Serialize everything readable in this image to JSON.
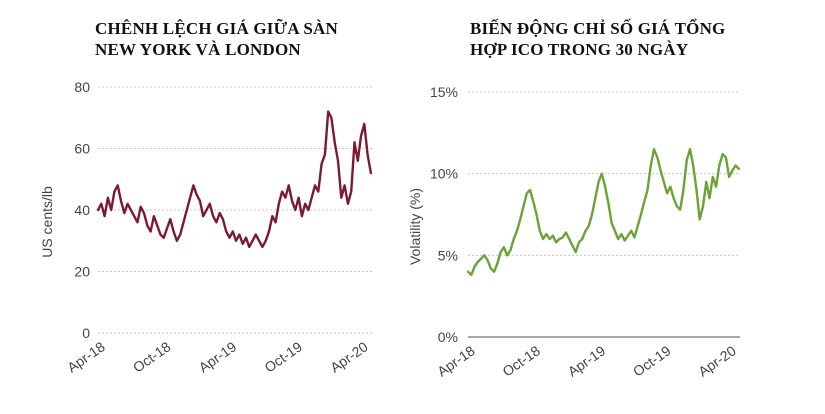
{
  "chart_data": [
    {
      "type": "line",
      "title_lines": [
        "CHÊNH LỆCH GIÁ GIỮA SÀN",
        "NEW YORK VÀ LONDON"
      ],
      "ylabel": "US cents/lb",
      "xlabel": "",
      "ylim": [
        0,
        80
      ],
      "yticks": [
        {
          "value": 0,
          "label": "0"
        },
        {
          "value": 20,
          "label": "20"
        },
        {
          "value": 40,
          "label": "40"
        },
        {
          "value": 60,
          "label": "60"
        },
        {
          "value": 80,
          "label": "80"
        }
      ],
      "xlim": [
        0,
        25
      ],
      "xticks": [
        {
          "value": 0,
          "label": "Apr-18"
        },
        {
          "value": 6,
          "label": "Oct-18"
        },
        {
          "value": 12,
          "label": "Apr-19"
        },
        {
          "value": 18,
          "label": "Oct-19"
        },
        {
          "value": 24,
          "label": "Apr-20"
        }
      ],
      "grid": true,
      "color": "#7b1a30",
      "series": [
        {
          "x": [
            0,
            0.3,
            0.6,
            0.9,
            1.2,
            1.5,
            1.8,
            2.1,
            2.4,
            2.7,
            3.0,
            3.3,
            3.6,
            3.9,
            4.2,
            4.5,
            4.8,
            5.1,
            5.4,
            5.7,
            6.0,
            6.3,
            6.6,
            6.9,
            7.2,
            7.5,
            7.8,
            8.1,
            8.4,
            8.7,
            9.0,
            9.3,
            9.6,
            9.9,
            10.2,
            10.5,
            10.8,
            11.1,
            11.4,
            11.7,
            12.0,
            12.3,
            12.6,
            12.9,
            13.2,
            13.5,
            13.8,
            14.1,
            14.4,
            14.7,
            15.0,
            15.3,
            15.6,
            15.9,
            16.2,
            16.5,
            16.8,
            17.1,
            17.4,
            17.7,
            18.0,
            18.3,
            18.6,
            18.9,
            19.2,
            19.5,
            19.8,
            20.1,
            20.4,
            20.7,
            21.0,
            21.3,
            21.6,
            21.9,
            22.2,
            22.5,
            22.8,
            23.1,
            23.4,
            23.7,
            24.0,
            24.3,
            24.6,
            24.9
          ],
          "y": [
            40,
            42,
            38,
            44,
            40,
            46,
            48,
            43,
            39,
            42,
            40,
            38,
            36,
            41,
            39,
            35,
            33,
            38,
            35,
            32,
            31,
            34,
            37,
            33,
            30,
            32,
            36,
            40,
            44,
            48,
            45,
            43,
            38,
            40,
            42,
            38,
            36,
            39,
            37,
            33,
            31,
            33,
            30,
            32,
            29,
            31,
            28,
            30,
            32,
            30,
            28,
            30,
            33,
            38,
            36,
            42,
            46,
            44,
            48,
            43,
            40,
            44,
            38,
            42,
            40,
            44,
            48,
            46,
            55,
            58,
            72,
            70,
            62,
            56,
            44,
            48,
            42,
            46,
            62,
            56,
            64,
            68,
            58,
            52
          ]
        }
      ]
    },
    {
      "type": "line",
      "title_lines": [
        "BIẾN ĐỘNG CHỈ SỐ GIÁ TỔNG",
        "HỢP ICO TRONG 30 NGÀY"
      ],
      "ylabel": "Volatility (%)",
      "xlabel": "",
      "ylim": [
        0,
        15
      ],
      "yticks": [
        {
          "value": 0,
          "label": "0%"
        },
        {
          "value": 5,
          "label": "5%"
        },
        {
          "value": 10,
          "label": "10%"
        },
        {
          "value": 15,
          "label": "15%"
        }
      ],
      "xlim": [
        0,
        25
      ],
      "xticks": [
        {
          "value": 0,
          "label": "Apr-18"
        },
        {
          "value": 6,
          "label": "Oct-18"
        },
        {
          "value": 12,
          "label": "Apr-19"
        },
        {
          "value": 18,
          "label": "Oct-19"
        },
        {
          "value": 24,
          "label": "Apr-20"
        }
      ],
      "grid": true,
      "color": "#6aa339",
      "series": [
        {
          "x": [
            0,
            0.3,
            0.6,
            0.9,
            1.2,
            1.5,
            1.8,
            2.1,
            2.4,
            2.7,
            3.0,
            3.3,
            3.6,
            3.9,
            4.2,
            4.5,
            4.8,
            5.1,
            5.4,
            5.7,
            6.0,
            6.3,
            6.6,
            6.9,
            7.2,
            7.5,
            7.8,
            8.1,
            8.4,
            8.7,
            9.0,
            9.3,
            9.6,
            9.9,
            10.2,
            10.5,
            10.8,
            11.1,
            11.4,
            11.7,
            12.0,
            12.3,
            12.6,
            12.9,
            13.2,
            13.5,
            13.8,
            14.1,
            14.4,
            14.7,
            15.0,
            15.3,
            15.6,
            15.9,
            16.2,
            16.5,
            16.8,
            17.1,
            17.4,
            17.7,
            18.0,
            18.3,
            18.6,
            18.9,
            19.2,
            19.5,
            19.8,
            20.1,
            20.4,
            20.7,
            21.0,
            21.3,
            21.6,
            21.9,
            22.2,
            22.5,
            22.8,
            23.1,
            23.4,
            23.7,
            24.0,
            24.3,
            24.6,
            24.9
          ],
          "y": [
            4.0,
            3.8,
            4.3,
            4.6,
            4.8,
            5.0,
            4.7,
            4.2,
            4.0,
            4.5,
            5.2,
            5.5,
            5.0,
            5.3,
            6.0,
            6.5,
            7.2,
            8.0,
            8.8,
            9.0,
            8.3,
            7.5,
            6.5,
            6.0,
            6.3,
            6.0,
            6.2,
            5.8,
            6.0,
            6.1,
            6.4,
            6.0,
            5.6,
            5.2,
            5.8,
            6.0,
            6.5,
            6.8,
            7.5,
            8.5,
            9.5,
            10.0,
            9.2,
            8.2,
            7.0,
            6.5,
            6.0,
            6.3,
            5.9,
            6.2,
            6.5,
            6.1,
            6.8,
            7.5,
            8.3,
            9.0,
            10.5,
            11.5,
            11.0,
            10.2,
            9.5,
            8.8,
            9.2,
            8.5,
            8.0,
            7.8,
            9.0,
            10.8,
            11.5,
            10.5,
            9.0,
            7.2,
            8.0,
            9.5,
            8.5,
            9.8,
            9.2,
            10.5,
            11.2,
            11.0,
            9.8,
            10.2,
            10.5,
            10.3
          ]
        }
      ]
    }
  ]
}
